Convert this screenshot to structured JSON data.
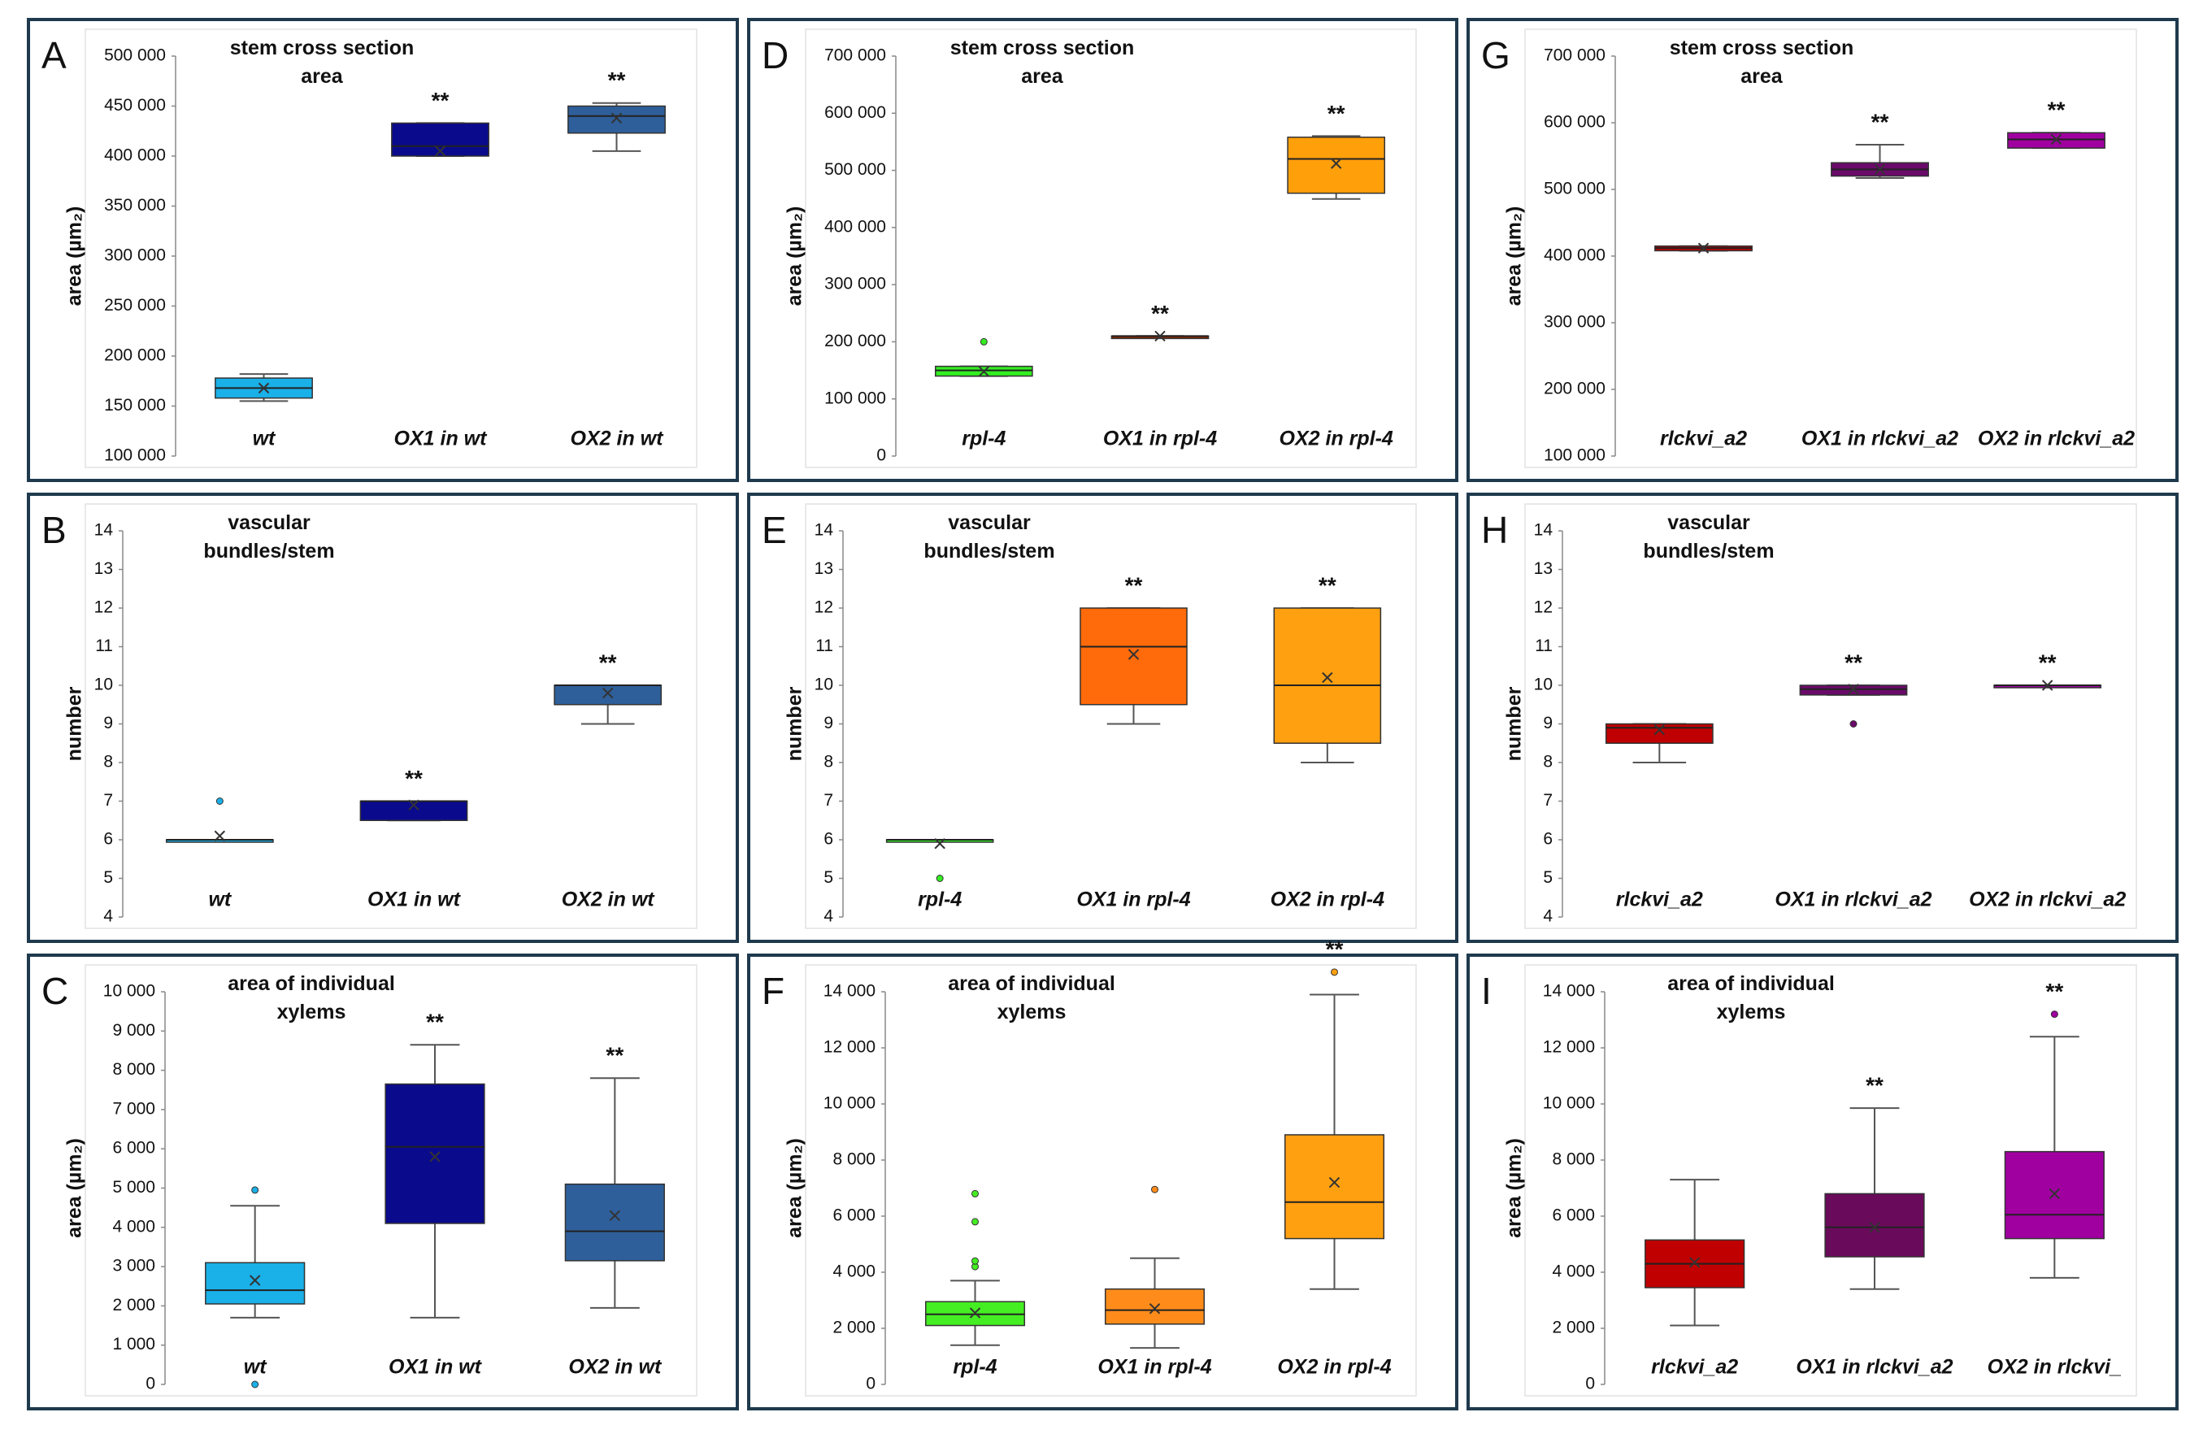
{
  "chart_data": [
    {
      "type": "box",
      "panel": "A",
      "title": "stem cross section area",
      "ylabel": "area (µm₂)",
      "categories": [
        "wt",
        "OX1 in wt",
        "OX2 in wt"
      ],
      "ylim": [
        100000,
        500000
      ],
      "yticks": [
        {
          "value": 100000,
          "label": "100 000"
        },
        {
          "value": 150000,
          "label": "150 000"
        },
        {
          "value": 200000,
          "label": "200 000"
        },
        {
          "value": 250000,
          "label": "250 000"
        },
        {
          "value": 300000,
          "label": "300 000"
        },
        {
          "value": 350000,
          "label": "350 000"
        },
        {
          "value": 400000,
          "label": "400 000"
        },
        {
          "value": 450000,
          "label": "450 000"
        },
        {
          "value": 500000,
          "label": "500 000"
        }
      ],
      "boxes": [
        {
          "color": "#1ab0e8",
          "whislo": 155000,
          "q1": 158000,
          "med": 168000,
          "q3": 178000,
          "whishi": 182000,
          "mean": 168000,
          "outliers": []
        },
        {
          "color": "#0a0a8c",
          "whislo": 400000,
          "q1": 400000,
          "med": 410000,
          "q3": 433000,
          "whishi": 433000,
          "mean": 405000,
          "outliers": [],
          "sig": "**"
        },
        {
          "color": "#2e5f9a",
          "whislo": 405000,
          "q1": 423000,
          "med": 440000,
          "q3": 450000,
          "whishi": 453000,
          "mean": 438000,
          "outliers": [],
          "sig": "**"
        }
      ]
    },
    {
      "type": "box",
      "panel": "B",
      "title": "vascular bundles/stem",
      "ylabel": "number",
      "categories": [
        "wt",
        "OX1 in wt",
        "OX2 in wt"
      ],
      "ylim": [
        4,
        14
      ],
      "yticks": [
        4,
        5,
        6,
        7,
        8,
        9,
        10,
        11,
        12,
        13,
        14
      ],
      "boxes": [
        {
          "color": "#1ab0e8",
          "whislo": 6,
          "q1": 6,
          "med": 6,
          "q3": 6,
          "whishi": 6,
          "mean": 6.1,
          "outliers": [
            7
          ]
        },
        {
          "color": "#0a0a8c",
          "whislo": 6.5,
          "q1": 6.5,
          "med": 7,
          "q3": 7,
          "whishi": 7,
          "mean": 6.9,
          "outliers": [],
          "sig": "**"
        },
        {
          "color": "#2e5f9a",
          "whislo": 9,
          "q1": 9.5,
          "med": 10,
          "q3": 10,
          "whishi": 10,
          "mean": 9.8,
          "outliers": [],
          "sig": "**"
        }
      ]
    },
    {
      "type": "box",
      "panel": "C",
      "title": "area of individual xylems",
      "ylabel": "area (µm₂)",
      "categories": [
        "wt",
        "OX1 in wt",
        "OX2 in wt"
      ],
      "ylim": [
        0,
        10000
      ],
      "yticks": [
        0,
        {
          "value": 1000,
          "label": "1 000"
        },
        {
          "value": 2000,
          "label": "2 000"
        },
        {
          "value": 3000,
          "label": "3 000"
        },
        {
          "value": 4000,
          "label": "4 000"
        },
        {
          "value": 5000,
          "label": "5 000"
        },
        {
          "value": 6000,
          "label": "6 000"
        },
        {
          "value": 7000,
          "label": "7 000"
        },
        {
          "value": 8000,
          "label": "8 000"
        },
        {
          "value": 9000,
          "label": "9 000"
        },
        {
          "value": 10000,
          "label": "10 000"
        }
      ],
      "boxes": [
        {
          "color": "#1ab0e8",
          "whislo": 1700,
          "q1": 2050,
          "med": 2400,
          "q3": 3100,
          "whishi": 4550,
          "mean": 2650,
          "outliers": [
            0,
            4950
          ]
        },
        {
          "color": "#0a0a8c",
          "whislo": 1700,
          "q1": 4100,
          "med": 6050,
          "q3": 7650,
          "whishi": 8650,
          "mean": 5800,
          "outliers": [],
          "sig": "**"
        },
        {
          "color": "#2e5f9a",
          "whislo": 1950,
          "q1": 3150,
          "med": 3900,
          "q3": 5100,
          "whishi": 7800,
          "mean": 4300,
          "outliers": [],
          "sig": "**"
        }
      ]
    },
    {
      "type": "box",
      "panel": "D",
      "title": "stem cross section area",
      "ylabel": "area (µm₂)",
      "categories": [
        "rpl-4",
        "OX1 in rpl-4",
        "OX2 in rpl-4"
      ],
      "ylim": [
        0,
        700000
      ],
      "yticks": [
        0,
        {
          "value": 100000,
          "label": "100 000"
        },
        {
          "value": 200000,
          "label": "200 000"
        },
        {
          "value": 300000,
          "label": "300 000"
        },
        {
          "value": 400000,
          "label": "400 000"
        },
        {
          "value": 500000,
          "label": "500 000"
        },
        {
          "value": 600000,
          "label": "600 000"
        },
        {
          "value": 700000,
          "label": "700 000"
        }
      ],
      "boxes": [
        {
          "color": "#33ee22",
          "whislo": 140000,
          "q1": 140000,
          "med": 150000,
          "q3": 157000,
          "whishi": 157000,
          "mean": 148000,
          "outliers": [
            200000
          ]
        },
        {
          "color": "#8b2500",
          "whislo": 210000,
          "q1": 210000,
          "med": 210000,
          "q3": 210000,
          "whishi": 210000,
          "mean": 210000,
          "outliers": [],
          "sig": "**"
        },
        {
          "color": "#ff9f0a",
          "whislo": 450000,
          "q1": 460000,
          "med": 520000,
          "q3": 558000,
          "whishi": 560000,
          "mean": 512000,
          "outliers": [],
          "sig": "**"
        }
      ]
    },
    {
      "type": "box",
      "panel": "E",
      "title": "vascular bundles/stem",
      "ylabel": "number",
      "categories": [
        "rpl-4",
        "OX1 in rpl-4",
        "OX2 in rpl-4"
      ],
      "ylim": [
        4,
        14
      ],
      "yticks": [
        4,
        5,
        6,
        7,
        8,
        9,
        10,
        11,
        12,
        13,
        14
      ],
      "boxes": [
        {
          "color": "#33ee22",
          "whislo": 6,
          "q1": 6,
          "med": 6,
          "q3": 6,
          "whishi": 6,
          "mean": 5.9,
          "outliers": [
            5
          ]
        },
        {
          "color": "#ff6a0a",
          "whislo": 9,
          "q1": 9.5,
          "med": 11,
          "q3": 12,
          "whishi": 12,
          "mean": 10.8,
          "outliers": [],
          "sig": "**"
        },
        {
          "color": "#ffa010",
          "whislo": 8,
          "q1": 8.5,
          "med": 10,
          "q3": 12,
          "whishi": 12,
          "mean": 10.2,
          "outliers": [],
          "sig": "**"
        }
      ]
    },
    {
      "type": "box",
      "panel": "F",
      "title": "area of individual xylems",
      "ylabel": "area (µm₂)",
      "categories": [
        "rpl-4",
        "OX1 in rpl-4",
        "OX2 in rpl-4"
      ],
      "ylim": [
        0,
        14000
      ],
      "yticks": [
        0,
        {
          "value": 2000,
          "label": "2 000"
        },
        {
          "value": 4000,
          "label": "4 000"
        },
        {
          "value": 6000,
          "label": "6 000"
        },
        {
          "value": 8000,
          "label": "8 000"
        },
        {
          "value": 10000,
          "label": "10 000"
        },
        {
          "value": 12000,
          "label": "12 000"
        },
        {
          "value": 14000,
          "label": "14 000"
        }
      ],
      "boxes": [
        {
          "color": "#44ee22",
          "whislo": 1400,
          "q1": 2100,
          "med": 2500,
          "q3": 2950,
          "whishi": 3700,
          "mean": 2550,
          "outliers": [
            4200,
            4400,
            5800,
            6800
          ]
        },
        {
          "color": "#ff8c1a",
          "whislo": 1300,
          "q1": 2150,
          "med": 2650,
          "q3": 3400,
          "whishi": 4500,
          "mean": 2700,
          "outliers": [
            6950
          ]
        },
        {
          "color": "#ffa010",
          "whislo": 3400,
          "q1": 5200,
          "med": 6500,
          "q3": 8900,
          "whishi": 13900,
          "mean": 7200,
          "outliers": [
            14700
          ],
          "sig": "**"
        }
      ]
    },
    {
      "type": "box",
      "panel": "G",
      "title": "stem cross section area",
      "ylabel": "area (µm₂)",
      "categories": [
        "rlckvi_a2",
        "OX1 in rlckvi_a2",
        "OX2 in rlckvi_a2"
      ],
      "ylim": [
        100000,
        700000
      ],
      "yticks": [
        {
          "value": 100000,
          "label": "100 000"
        },
        {
          "value": 200000,
          "label": "200 000"
        },
        {
          "value": 300000,
          "label": "300 000"
        },
        {
          "value": 400000,
          "label": "400 000"
        },
        {
          "value": 500000,
          "label": "500 000"
        },
        {
          "value": 600000,
          "label": "600 000"
        },
        {
          "value": 700000,
          "label": "700 000"
        }
      ],
      "boxes": [
        {
          "color": "#c00000",
          "whislo": 408000,
          "q1": 408000,
          "med": 412000,
          "q3": 415000,
          "whishi": 415000,
          "mean": 412000,
          "outliers": []
        },
        {
          "color": "#6a0a6a",
          "whislo": 517000,
          "q1": 520000,
          "med": 530000,
          "q3": 540000,
          "whishi": 567000,
          "mean": 530000,
          "outliers": [],
          "sig": "**"
        },
        {
          "color": "#a000a0",
          "whislo": 562000,
          "q1": 562000,
          "med": 575000,
          "q3": 585000,
          "whishi": 585000,
          "mean": 575000,
          "outliers": [],
          "sig": "**"
        }
      ]
    },
    {
      "type": "box",
      "panel": "H",
      "title": "vascular bundles/stem",
      "ylabel": "number",
      "categories": [
        "rlckvi_a2",
        "OX1 in rlckvi_a2",
        "OX2 in rlckvi_a2"
      ],
      "ylim": [
        4,
        14
      ],
      "yticks": [
        4,
        5,
        6,
        7,
        8,
        9,
        10,
        11,
        12,
        13,
        14
      ],
      "boxes": [
        {
          "color": "#c00000",
          "whislo": 8,
          "q1": 8.5,
          "med": 8.9,
          "q3": 9,
          "whishi": 9,
          "mean": 8.85,
          "outliers": []
        },
        {
          "color": "#6a0a6a",
          "whislo": 9.75,
          "q1": 9.75,
          "med": 9.9,
          "q3": 10,
          "whishi": 10,
          "mean": 9.9,
          "outliers": [
            9
          ],
          "sig": "**"
        },
        {
          "color": "#a000a0",
          "whislo": 10,
          "q1": 10,
          "med": 10,
          "q3": 10,
          "whishi": 10,
          "mean": 10,
          "outliers": [],
          "sig": "**"
        }
      ]
    },
    {
      "type": "box",
      "panel": "I",
      "title": "area of individual xylems",
      "ylabel": "area (µm₂)",
      "categories": [
        "rlckvi_a2",
        "OX1 in rlckvi_a2",
        "OX2 in rlckvi_"
      ],
      "ylim": [
        0,
        14000
      ],
      "yticks": [
        0,
        {
          "value": 2000,
          "label": "2 000"
        },
        {
          "value": 4000,
          "label": "4 000"
        },
        {
          "value": 6000,
          "label": "6 000"
        },
        {
          "value": 8000,
          "label": "8 000"
        },
        {
          "value": 10000,
          "label": "10 000"
        },
        {
          "value": 12000,
          "label": "12 000"
        },
        {
          "value": 14000,
          "label": "14 000"
        }
      ],
      "boxes": [
        {
          "color": "#c00000",
          "whislo": 2100,
          "q1": 3450,
          "med": 4300,
          "q3": 5150,
          "whishi": 7300,
          "mean": 4350,
          "outliers": []
        },
        {
          "color": "#6a0a5a",
          "whislo": 3400,
          "q1": 4550,
          "med": 5600,
          "q3": 6800,
          "whishi": 9850,
          "mean": 5600,
          "outliers": [],
          "sig": "**"
        },
        {
          "color": "#a000a0",
          "whislo": 3800,
          "q1": 5200,
          "med": 6050,
          "q3": 8300,
          "whishi": 12400,
          "mean": 6800,
          "outliers": [
            13200
          ],
          "sig": "**"
        }
      ]
    }
  ]
}
